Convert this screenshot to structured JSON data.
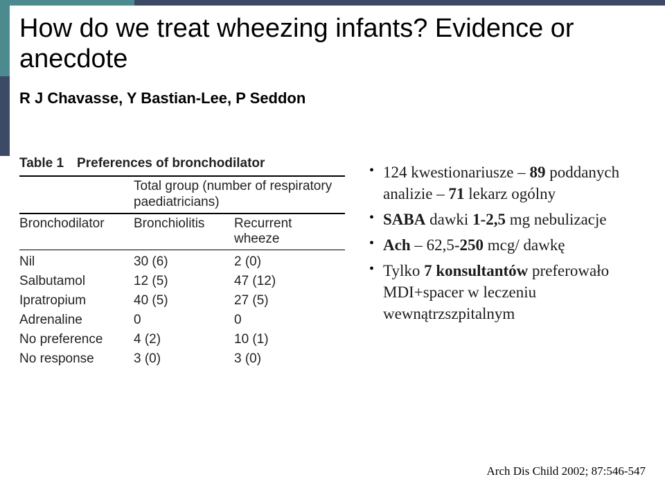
{
  "accent": {
    "teal": "#4b8a8f",
    "navy": "#3c4a66"
  },
  "header": {
    "title": "How do we treat wheezing infants? Evidence or anecdote",
    "authors": "R J Chavasse, Y Bastian-Lee, P Seddon"
  },
  "table": {
    "type": "table",
    "caption": "Table 1 Preferences of bronchodilator",
    "columns": [
      "Bronchodilator",
      "Bronchiolitis",
      "Recurrent wheeze"
    ],
    "header_note": "Total group (number of respiratory paediatricians)",
    "rows": [
      [
        "Nil",
        "30 (6)",
        "2 (0)"
      ],
      [
        "Salbutamol",
        "12 (5)",
        "47 (12)"
      ],
      [
        "Ipratropium",
        "40 (5)",
        "27 (5)"
      ],
      [
        "Adrenaline",
        "0",
        "0"
      ],
      [
        "No preference",
        "4 (2)",
        "10 (1)"
      ],
      [
        "No response",
        "3 (0)",
        "3 (0)"
      ]
    ],
    "font_size": 19,
    "text_color": "#231f20",
    "rule_color": "#000000"
  },
  "bullets": {
    "items": [
      "124 kwestionariusze – <b>89</b> poddanych analizie – <b>71</b> lekarz ogólny",
      "<b>SABA</b> dawki <b>1-2,5</b> mg nebulizacje",
      "<b>Ach</b> – 62,5-<b>250</b> mcg/ dawkę",
      "Tylko <b>7</b> <b>konsultantów</b> preferowało MDI+spacer w leczeniu wewnątrzszpitalnym"
    ],
    "font_size": 23,
    "color": "#1b1b1b"
  },
  "citation": "Arch Dis Child 2002; 87:546-547"
}
